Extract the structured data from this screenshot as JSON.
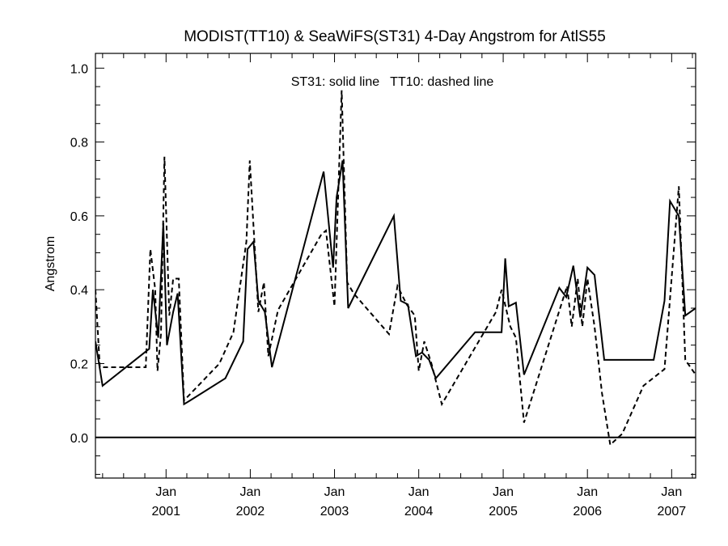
{
  "chart_data": {
    "type": "line",
    "title": "MODIST(TT10) & SeaWiFS(ST31) 4-Day Angstrom for AtlS55",
    "ylabel": "Angstrom",
    "xlabel": "",
    "annotation": "ST31: solid line   TT10: dashed line",
    "xlim": [
      "2000-03-01",
      "2007-04-15"
    ],
    "ylim": [
      -0.11,
      1.04
    ],
    "y_ticks": [
      0.0,
      0.2,
      0.4,
      0.6,
      0.8,
      1.0
    ],
    "y_tick_labels": [
      "0.0",
      "0.2",
      "0.4",
      "0.6",
      "0.8",
      "1.0"
    ],
    "x_ticks": [
      {
        "date": "2001-01-01",
        "month": "Jan",
        "year": "2001"
      },
      {
        "date": "2002-01-01",
        "month": "Jan",
        "year": "2002"
      },
      {
        "date": "2003-01-01",
        "month": "Jan",
        "year": "2003"
      },
      {
        "date": "2004-01-01",
        "month": "Jan",
        "year": "2004"
      },
      {
        "date": "2005-01-01",
        "month": "Jan",
        "year": "2005"
      },
      {
        "date": "2006-01-01",
        "month": "Jan",
        "year": "2006"
      },
      {
        "date": "2007-01-01",
        "month": "Jan",
        "year": "2007"
      }
    ],
    "grid": false,
    "reference_line": 0.0,
    "series": [
      {
        "label": "ST31",
        "style": "solid",
        "color": "#000000",
        "x": [
          "2000-03-01",
          "2000-04-01",
          "2000-10-20",
          "2000-11-05",
          "2000-11-28",
          "2000-12-20",
          "2001-01-05",
          "2001-02-01",
          "2001-02-20",
          "2001-03-20",
          "2001-04-15",
          "2001-09-15",
          "2001-12-01",
          "2001-12-20",
          "2002-01-15",
          "2002-02-05",
          "2002-03-05",
          "2002-04-05",
          "2002-11-15",
          "2002-12-26",
          "2003-01-10",
          "2003-02-05",
          "2003-03-01",
          "2003-09-15",
          "2003-10-15",
          "2003-11-15",
          "2003-12-20",
          "2004-01-15",
          "2004-02-15",
          "2004-03-15",
          "2004-09-01",
          "2004-12-25",
          "2005-01-10",
          "2005-01-25",
          "2005-02-25",
          "2005-04-01",
          "2005-09-01",
          "2005-10-01",
          "2005-11-01",
          "2005-12-01",
          "2006-01-01",
          "2006-02-01",
          "2006-03-15",
          "2006-10-15",
          "2006-12-01",
          "2006-12-25",
          "2007-02-01",
          "2007-03-01",
          "2007-04-15"
        ],
        "y": [
          0.26,
          0.14,
          0.24,
          0.4,
          0.27,
          0.58,
          0.25,
          0.34,
          0.39,
          0.09,
          0.1,
          0.16,
          0.26,
          0.51,
          0.53,
          0.37,
          0.34,
          0.19,
          0.72,
          0.46,
          0.65,
          0.75,
          0.35,
          0.6,
          0.37,
          0.36,
          0.22,
          0.23,
          0.21,
          0.16,
          0.285,
          0.285,
          0.485,
          0.355,
          0.365,
          0.17,
          0.405,
          0.38,
          0.465,
          0.325,
          0.46,
          0.44,
          0.21,
          0.21,
          0.37,
          0.64,
          0.6,
          0.33,
          0.35
        ]
      },
      {
        "label": "TT10",
        "style": "dashed",
        "color": "#000000",
        "x": [
          "2000-03-01",
          "2000-03-20",
          "2000-10-05",
          "2000-10-25",
          "2000-11-15",
          "2000-11-25",
          "2000-12-10",
          "2000-12-25",
          "2001-01-15",
          "2001-02-01",
          "2001-02-25",
          "2001-03-20",
          "2001-08-20",
          "2001-10-20",
          "2001-12-15",
          "2001-12-30",
          "2002-02-05",
          "2002-03-01",
          "2002-03-20",
          "2002-05-01",
          "2002-11-05",
          "2002-11-25",
          "2003-01-01",
          "2003-02-01",
          "2003-02-25",
          "2003-03-25",
          "2003-08-25",
          "2003-10-01",
          "2003-11-10",
          "2003-12-15",
          "2004-01-01",
          "2004-01-25",
          "2004-02-25",
          "2004-04-10",
          "2004-12-01",
          "2004-12-25",
          "2005-02-01",
          "2005-02-25",
          "2005-04-01",
          "2005-10-05",
          "2005-10-25",
          "2005-11-20",
          "2005-12-10",
          "2006-01-01",
          "2006-02-01",
          "2006-03-05",
          "2006-04-10",
          "2006-06-01",
          "2006-09-01",
          "2006-12-01",
          "2007-02-01",
          "2007-03-01",
          "2007-04-15"
        ],
        "y": [
          0.4,
          0.19,
          0.19,
          0.51,
          0.4,
          0.18,
          0.28,
          0.76,
          0.33,
          0.43,
          0.43,
          0.1,
          0.2,
          0.285,
          0.53,
          0.75,
          0.34,
          0.42,
          0.22,
          0.345,
          0.55,
          0.56,
          0.355,
          0.94,
          0.42,
          0.39,
          0.28,
          0.41,
          0.36,
          0.33,
          0.18,
          0.26,
          0.2,
          0.09,
          0.34,
          0.4,
          0.3,
          0.27,
          0.04,
          0.41,
          0.3,
          0.43,
          0.3,
          0.43,
          0.3,
          0.12,
          -0.02,
          0.01,
          0.14,
          0.185,
          0.68,
          0.21,
          0.17
        ]
      }
    ]
  }
}
